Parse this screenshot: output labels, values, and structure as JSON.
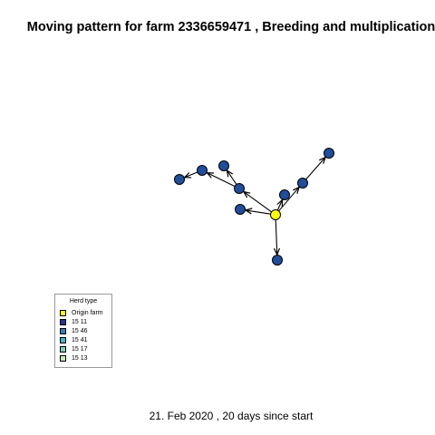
{
  "title": "Moving pattern for farm 2336659471 , Breeding and multiplication",
  "footer": "21. Feb 2020 ,  20 days since start",
  "legend": {
    "title": "Herd type",
    "items": [
      {
        "label": "Origin farm",
        "color": "#ffff00"
      },
      {
        "label": "15 11",
        "color": "#253494"
      },
      {
        "label": "15 46",
        "color": "#2c7fb8"
      },
      {
        "label": "15 41",
        "color": "#41b6c4"
      },
      {
        "label": "15 17",
        "color": "#7fcdbb"
      },
      {
        "label": "15 13",
        "color": "#c7e9b4"
      }
    ]
  },
  "colors": {
    "origin": "#ffff00",
    "herd": "#1f4e9c",
    "edge": "#000000"
  }
}
